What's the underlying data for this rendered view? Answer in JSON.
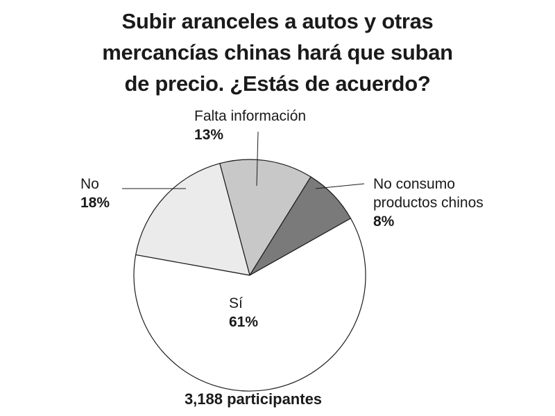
{
  "title_lines": [
    "Subir aranceles a autos y otras",
    "mercancías chinas hará que suban",
    "de precio. ¿Estás de acuerdo?"
  ],
  "footer": "3,188 participantes",
  "chart_data": {
    "type": "pie",
    "title": "Subir aranceles a autos y otras mercancías chinas hará que suban de precio. ¿Estás de acuerdo?",
    "slices": [
      {
        "label": "Falta información",
        "value": 13,
        "value_label": "13%",
        "color": "#c8c8c8"
      },
      {
        "label": "No consumo productos chinos",
        "value": 8,
        "value_label": "8%",
        "color": "#7a7a7a"
      },
      {
        "label": "Sí",
        "value": 61,
        "value_label": "61%",
        "color": "#ffffff"
      },
      {
        "label": "No",
        "value": 18,
        "value_label": "18%",
        "color": "#ebebeb"
      }
    ],
    "start_angle_deg": -15,
    "direction": "clockwise",
    "stroke_color": "#1a1a1a"
  }
}
